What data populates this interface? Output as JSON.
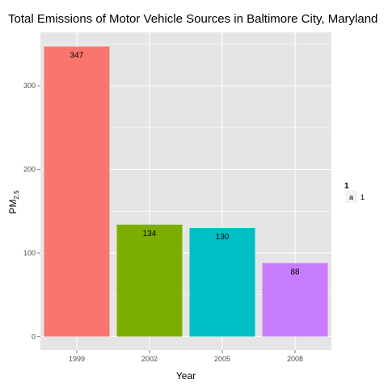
{
  "chart_data": {
    "type": "bar",
    "title": "Total Emissions of Motor Vehicle Sources in Baltimore City, Maryland",
    "xlabel": "Year",
    "ylabel_main": "PM",
    "ylabel_sub": "2.5",
    "categories": [
      "1999",
      "2002",
      "2005",
      "2008"
    ],
    "values": [
      347,
      134,
      130,
      88
    ],
    "data_labels": [
      "347",
      "134",
      "130",
      "88"
    ],
    "colors": [
      "#F8766D",
      "#7CAE00",
      "#00BFC4",
      "#C77CFF"
    ],
    "ylim": [
      -16,
      364
    ],
    "yticks": [
      0,
      100,
      200,
      300
    ],
    "ytick_labels": [
      "0",
      "100",
      "200",
      "300"
    ],
    "grid": true,
    "panel_background": "#E5E5E5",
    "grid_color": "#FFFFFF",
    "legend": {
      "position": "right",
      "title": "1",
      "key_glyph": "a",
      "label": "1"
    }
  }
}
